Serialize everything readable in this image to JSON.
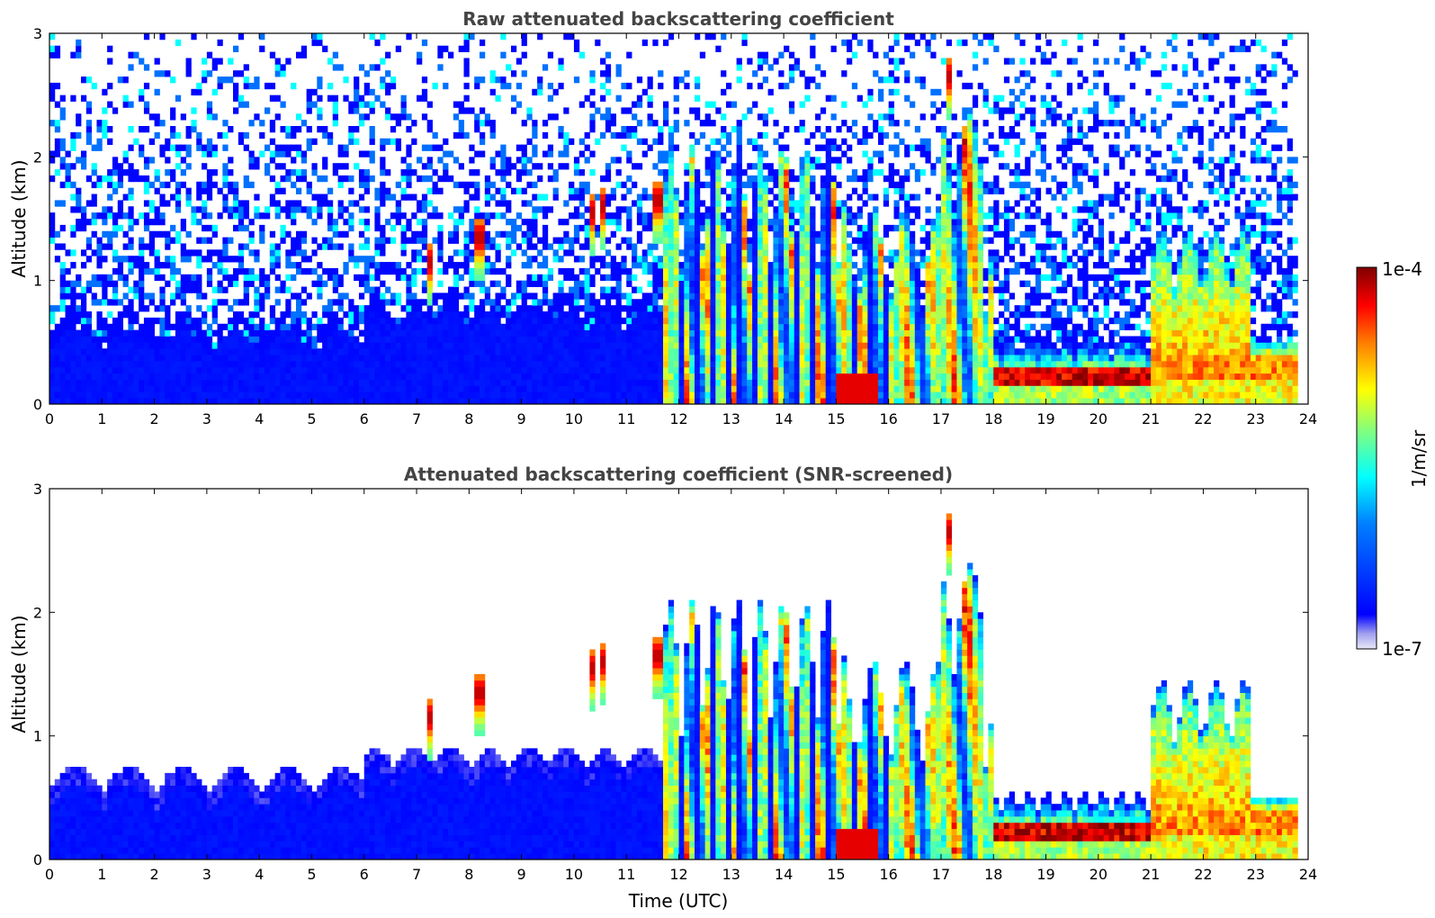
{
  "chart_data": [
    {
      "type": "heatmap",
      "title": "Raw attenuated backscattering coefficient",
      "xlabel": "",
      "ylabel": "Altitude (km)",
      "xlim": [
        0,
        24
      ],
      "ylim": [
        0,
        3
      ],
      "xticks": [
        "0",
        "1",
        "2",
        "3",
        "4",
        "5",
        "6",
        "7",
        "8",
        "9",
        "10",
        "11",
        "12",
        "13",
        "14",
        "15",
        "16",
        "17",
        "18",
        "19",
        "20",
        "21",
        "22",
        "23",
        "24"
      ],
      "yticks": [
        "0",
        "1",
        "2",
        "3"
      ],
      "screened": false
    },
    {
      "type": "heatmap",
      "title": "Attenuated backscattering coefficient (SNR-screened)",
      "xlabel": "Time (UTC)",
      "ylabel": "Altitude (km)",
      "xlim": [
        0,
        24
      ],
      "ylim": [
        0,
        3
      ],
      "xticks": [
        "0",
        "1",
        "2",
        "3",
        "4",
        "5",
        "6",
        "7",
        "8",
        "9",
        "10",
        "11",
        "12",
        "13",
        "14",
        "15",
        "16",
        "17",
        "18",
        "19",
        "20",
        "21",
        "22",
        "23",
        "24"
      ],
      "yticks": [
        "0",
        "1",
        "2",
        "3"
      ],
      "screened": true
    }
  ],
  "colorbar": {
    "label": "1/m/sr",
    "max_label": "1e-4",
    "min_label": "1e-7",
    "colormap": "jet",
    "colors": [
      "#e8e8f8",
      "#0000ff",
      "#00ffff",
      "#ffff00",
      "#ff0000",
      "#800000"
    ]
  }
}
